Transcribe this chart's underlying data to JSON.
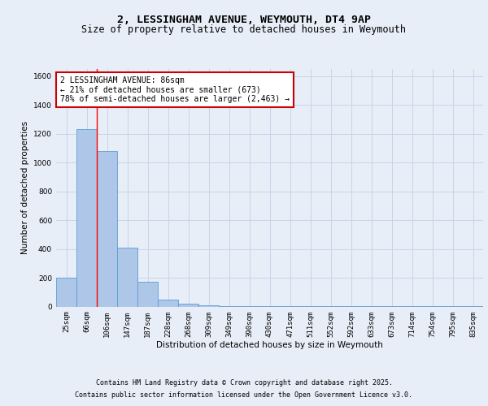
{
  "title1": "2, LESSINGHAM AVENUE, WEYMOUTH, DT4 9AP",
  "title2": "Size of property relative to detached houses in Weymouth",
  "xlabel": "Distribution of detached houses by size in Weymouth",
  "ylabel": "Number of detached properties",
  "annotation_line1": "2 LESSINGHAM AVENUE: 86sqm",
  "annotation_line2": "← 21% of detached houses are smaller (673)",
  "annotation_line3": "78% of semi-detached houses are larger (2,463) →",
  "footer1": "Contains HM Land Registry data © Crown copyright and database right 2025.",
  "footer2": "Contains public sector information licensed under the Open Government Licence v3.0.",
  "bin_labels": [
    "25sqm",
    "66sqm",
    "106sqm",
    "147sqm",
    "187sqm",
    "228sqm",
    "268sqm",
    "309sqm",
    "349sqm",
    "390sqm",
    "430sqm",
    "471sqm",
    "511sqm",
    "552sqm",
    "592sqm",
    "633sqm",
    "673sqm",
    "714sqm",
    "754sqm",
    "795sqm",
    "835sqm"
  ],
  "bar_heights": [
    200,
    1230,
    1080,
    410,
    170,
    50,
    20,
    10,
    5,
    4,
    3,
    2,
    2,
    1,
    1,
    1,
    1,
    1,
    1,
    1,
    1
  ],
  "bar_color": "#aec6e8",
  "bar_edge_color": "#5a9fd4",
  "red_line_x": 1.48,
  "ylim": [
    0,
    1650
  ],
  "yticks": [
    0,
    200,
    400,
    600,
    800,
    1000,
    1200,
    1400,
    1600
  ],
  "background_color": "#e8eef8",
  "plot_background": "#e8eef8",
  "annotation_box_color": "#ffffff",
  "annotation_box_edge": "#cc0000",
  "grid_color": "#c8d4e8",
  "title1_fontsize": 9.5,
  "title2_fontsize": 8.5,
  "axis_label_fontsize": 7.5,
  "tick_fontsize": 6.5,
  "footer_fontsize": 6.0,
  "annotation_fontsize": 7.0
}
